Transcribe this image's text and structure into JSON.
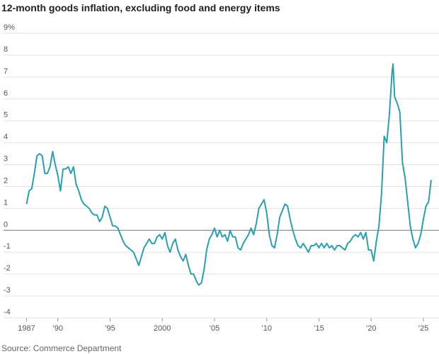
{
  "chart_data": {
    "type": "line",
    "title": "12-month goods inflation, excluding food and energy items",
    "source": "Source: Commerce Department",
    "x": [
      1987,
      1987.25,
      1987.5,
      1987.75,
      1988,
      1988.25,
      1988.5,
      1988.75,
      1989,
      1989.25,
      1989.5,
      1989.75,
      1990,
      1990.25,
      1990.5,
      1990.75,
      1991,
      1991.25,
      1991.5,
      1991.75,
      1992,
      1992.25,
      1992.5,
      1992.75,
      1993,
      1993.25,
      1993.5,
      1993.75,
      1994,
      1994.25,
      1994.5,
      1994.75,
      1995,
      1995.25,
      1995.5,
      1995.75,
      1996,
      1996.25,
      1996.5,
      1996.75,
      1997,
      1997.25,
      1997.5,
      1997.75,
      1998,
      1998.25,
      1998.5,
      1998.75,
      1999,
      1999.25,
      1999.5,
      1999.75,
      2000,
      2000.25,
      2000.5,
      2000.75,
      2001,
      2001.25,
      2001.5,
      2001.75,
      2002,
      2002.25,
      2002.5,
      2002.75,
      2003,
      2003.25,
      2003.5,
      2003.75,
      2004,
      2004.25,
      2004.5,
      2004.75,
      2005,
      2005.25,
      2005.5,
      2005.75,
      2006,
      2006.25,
      2006.5,
      2006.75,
      2007,
      2007.25,
      2007.5,
      2007.75,
      2008,
      2008.25,
      2008.5,
      2008.75,
      2009,
      2009.25,
      2009.5,
      2009.75,
      2010,
      2010.25,
      2010.5,
      2010.75,
      2011,
      2011.25,
      2011.5,
      2011.75,
      2012,
      2012.25,
      2012.5,
      2012.75,
      2013,
      2013.25,
      2013.5,
      2013.75,
      2014,
      2014.25,
      2014.5,
      2014.75,
      2015,
      2015.25,
      2015.5,
      2015.75,
      2016,
      2016.25,
      2016.5,
      2016.75,
      2017,
      2017.25,
      2017.5,
      2017.75,
      2018,
      2018.25,
      2018.5,
      2018.75,
      2019,
      2019.25,
      2019.5,
      2019.75,
      2020,
      2020.25,
      2020.5,
      2020.75,
      2021,
      2021.25,
      2021.5,
      2021.75,
      2022,
      2022.1,
      2022.25,
      2022.5,
      2022.75,
      2023,
      2023.25,
      2023.5,
      2023.75,
      2024,
      2024.25,
      2024.5,
      2024.75,
      2025,
      2025.25,
      2025.5,
      2025.75
    ],
    "values": [
      1.2,
      1.8,
      1.9,
      2.6,
      3.4,
      3.5,
      3.4,
      2.6,
      2.6,
      2.9,
      3.6,
      3.0,
      2.5,
      1.8,
      2.8,
      2.8,
      2.9,
      2.6,
      2.9,
      2.1,
      1.8,
      1.4,
      1.2,
      1.1,
      1.0,
      0.8,
      0.7,
      0.7,
      0.4,
      0.6,
      1.1,
      1.0,
      0.6,
      0.2,
      0.2,
      0.1,
      -0.2,
      -0.5,
      -0.7,
      -0.8,
      -0.9,
      -1.0,
      -1.3,
      -1.6,
      -1.2,
      -0.8,
      -0.6,
      -0.4,
      -0.6,
      -0.6,
      -0.3,
      -0.2,
      -0.4,
      -0.1,
      -0.7,
      -1.0,
      -0.6,
      -0.4,
      -0.9,
      -1.2,
      -1.4,
      -1.1,
      -1.6,
      -2.0,
      -2.0,
      -2.3,
      -2.5,
      -2.4,
      -1.8,
      -0.9,
      -0.4,
      -0.2,
      0.1,
      -0.3,
      0.0,
      -0.3,
      -0.2,
      -0.5,
      0.0,
      -0.3,
      -0.3,
      -0.8,
      -0.9,
      -0.6,
      -0.4,
      -0.2,
      0.1,
      -0.2,
      0.3,
      1.0,
      1.2,
      1.4,
      0.8,
      -0.2,
      -0.7,
      -0.8,
      -0.2,
      0.6,
      0.9,
      1.2,
      1.1,
      0.5,
      0.0,
      -0.4,
      -0.7,
      -0.8,
      -0.6,
      -0.8,
      -1.0,
      -0.7,
      -0.7,
      -0.6,
      -0.8,
      -0.6,
      -0.8,
      -0.6,
      -0.8,
      -0.7,
      -0.9,
      -0.7,
      -0.7,
      -0.8,
      -0.9,
      -0.6,
      -0.5,
      -0.3,
      -0.2,
      -0.3,
      -0.1,
      -0.4,
      -0.1,
      -0.9,
      -0.9,
      -1.4,
      -0.5,
      0.2,
      1.7,
      4.3,
      4.0,
      5.3,
      7.2,
      7.6,
      6.1,
      5.8,
      5.4,
      3.1,
      2.4,
      1.3,
      0.2,
      -0.4,
      -0.8,
      -0.6,
      -0.2,
      0.5,
      1.1,
      1.3,
      2.3
    ],
    "color": "#2a9fb0",
    "xlim": [
      1984.8,
      2026.5
    ],
    "ylim": [
      -4,
      9
    ],
    "yticks": [
      -4,
      -3,
      -2,
      -1,
      0,
      1,
      2,
      3,
      4,
      5,
      6,
      7,
      8,
      {
        "value": 9,
        "label": "9%"
      }
    ],
    "xticks": [
      {
        "value": 1987,
        "label": "1987"
      },
      {
        "value": 1990,
        "label": "’90"
      },
      {
        "value": 1995,
        "label": "’95"
      },
      2000,
      {
        "value": 2005,
        "label": "’05"
      },
      {
        "value": 2010,
        "label": "’10"
      },
      {
        "value": 2015,
        "label": "’15"
      },
      {
        "value": 2020,
        "label": "’20"
      },
      {
        "value": 2025,
        "label": "’25"
      }
    ],
    "grid": true
  }
}
